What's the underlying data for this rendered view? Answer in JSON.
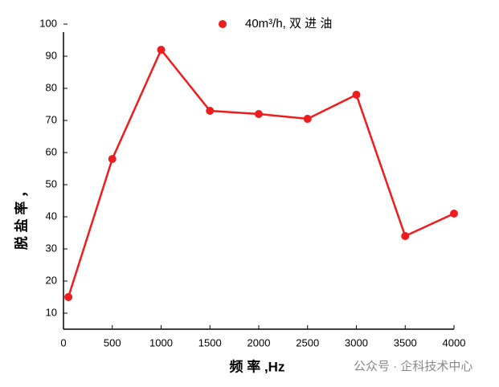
{
  "chart_data": {
    "type": "line",
    "legend_label": "40m³/h,  双 进 油",
    "x_label": "频  率  ,Hz",
    "y_label": "脱 盐 率 ，",
    "watermark": "公众号 · 企科技术中心",
    "series": [
      {
        "name": "40m³/h,  双 进 油",
        "color": "#ee1c1c",
        "x": [
          50,
          500,
          1000,
          1500,
          2000,
          2500,
          3000,
          3500,
          4000
        ],
        "values": [
          15,
          58,
          92,
          73,
          72,
          70.5,
          78,
          34,
          41
        ]
      }
    ],
    "xlim": [
      0,
      4000
    ],
    "xticks": [
      0,
      500,
      1000,
      1500,
      2000,
      2500,
      3000,
      3500,
      4000
    ],
    "ylim": [
      5,
      100
    ],
    "yticks": [
      10,
      20,
      30,
      40,
      50,
      60,
      70,
      80,
      90,
      100
    ]
  }
}
